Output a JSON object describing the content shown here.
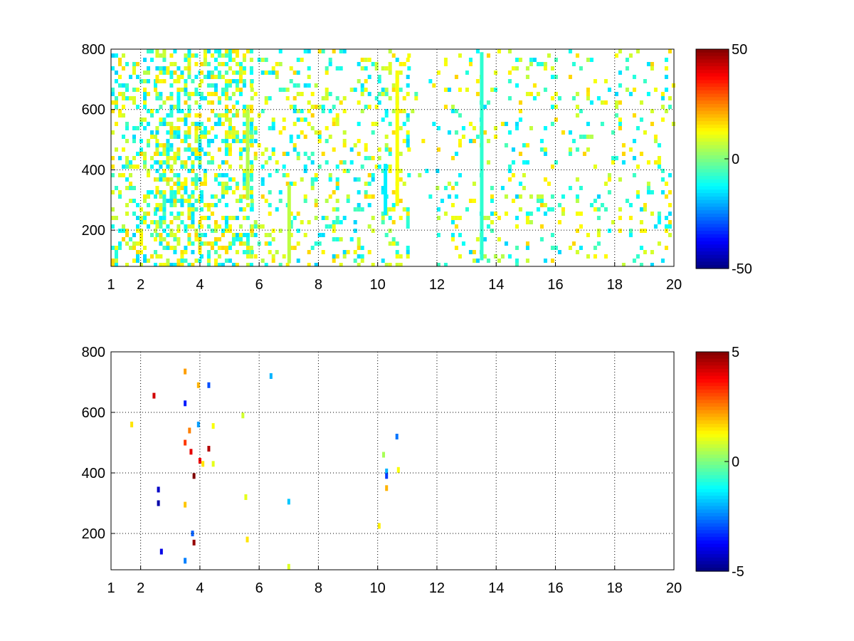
{
  "chart_data": [
    {
      "type": "heatmap",
      "panel": "top",
      "title": "",
      "xlabel": "",
      "ylabel": "",
      "xlim": [
        1,
        20
      ],
      "ylim": [
        80,
        800
      ],
      "x_ticks": [
        "1",
        "2",
        "4",
        "6",
        "8",
        "10",
        "12",
        "14",
        "16",
        "18",
        "20"
      ],
      "x_tick_values": [
        1,
        2,
        4,
        6,
        8,
        10,
        12,
        14,
        16,
        18,
        20
      ],
      "y_ticks": [
        "200",
        "400",
        "600",
        "800"
      ],
      "y_tick_values": [
        200,
        400,
        600,
        800
      ],
      "grid": true,
      "colormap": "jet",
      "colorbar": {
        "clim": [
          -50,
          50
        ],
        "ticks": [
          "50",
          "0",
          "-50"
        ],
        "tick_values": [
          50,
          0,
          -50
        ]
      },
      "density": [
        {
          "from": 1.0,
          "to": 2.5,
          "d": 0.32
        },
        {
          "from": 2.5,
          "to": 4.0,
          "d": 0.5
        },
        {
          "from": 4.0,
          "to": 5.7,
          "d": 0.42
        },
        {
          "from": 5.7,
          "to": 10.0,
          "d": 0.17
        },
        {
          "from": 10.0,
          "to": 11.0,
          "d": 0.22
        },
        {
          "from": 11.0,
          "to": 12.0,
          "d": 0.05
        },
        {
          "from": 12.0,
          "to": 20.0,
          "d": 0.12
        }
      ],
      "points": [],
      "streaks": [
        {
          "x": 10.65,
          "y0": 280,
          "y1": 720,
          "v": 12
        },
        {
          "x": 10.25,
          "y0": 250,
          "y1": 420,
          "v": -14
        },
        {
          "x": 13.5,
          "y0": 100,
          "y1": 790,
          "v": -8
        },
        {
          "x": 7.0,
          "y0": 90,
          "y1": 350,
          "v": 6
        },
        {
          "x": 5.6,
          "y0": 300,
          "y1": 600,
          "v": 5
        }
      ]
    },
    {
      "type": "heatmap",
      "panel": "bottom",
      "title": "",
      "xlabel": "",
      "ylabel": "",
      "xlim": [
        1,
        20
      ],
      "ylim": [
        80,
        800
      ],
      "x_ticks": [
        "1",
        "2",
        "4",
        "6",
        "8",
        "10",
        "12",
        "14",
        "16",
        "18",
        "20"
      ],
      "x_tick_values": [
        1,
        2,
        4,
        6,
        8,
        10,
        12,
        14,
        16,
        18,
        20
      ],
      "y_ticks": [
        "200",
        "400",
        "600",
        "800"
      ],
      "y_tick_values": [
        200,
        400,
        600,
        800
      ],
      "grid": true,
      "colormap": "jet",
      "colorbar": {
        "clim": [
          -5,
          5
        ],
        "ticks": [
          "5",
          "0",
          "-5"
        ],
        "tick_values": [
          5,
          0,
          -5
        ]
      },
      "density": [],
      "streaks": [],
      "points": [
        {
          "x": 1.7,
          "y": 560,
          "v": 1.5
        },
        {
          "x": 2.45,
          "y": 655,
          "v": 4.2
        },
        {
          "x": 2.6,
          "y": 345,
          "v": -4.3
        },
        {
          "x": 2.6,
          "y": 300,
          "v": -4.6
        },
        {
          "x": 2.7,
          "y": 140,
          "v": -4.0
        },
        {
          "x": 3.5,
          "y": 735,
          "v": 2.2
        },
        {
          "x": 3.5,
          "y": 630,
          "v": -3.5
        },
        {
          "x": 3.5,
          "y": 500,
          "v": 3.2
        },
        {
          "x": 3.5,
          "y": 295,
          "v": 1.8
        },
        {
          "x": 3.5,
          "y": 110,
          "v": -2.5
        },
        {
          "x": 3.65,
          "y": 540,
          "v": 2.5
        },
        {
          "x": 3.7,
          "y": 470,
          "v": 4.0
        },
        {
          "x": 3.8,
          "y": 390,
          "v": 5.0
        },
        {
          "x": 3.75,
          "y": 200,
          "v": -2.8
        },
        {
          "x": 3.8,
          "y": 170,
          "v": 4.8
        },
        {
          "x": 3.95,
          "y": 690,
          "v": 2.0
        },
        {
          "x": 3.95,
          "y": 560,
          "v": -2.2
        },
        {
          "x": 4.0,
          "y": 440,
          "v": 3.8
        },
        {
          "x": 4.1,
          "y": 430,
          "v": 1.5
        },
        {
          "x": 4.3,
          "y": 690,
          "v": -3.0
        },
        {
          "x": 4.3,
          "y": 480,
          "v": 4.5
        },
        {
          "x": 4.45,
          "y": 430,
          "v": 1.0
        },
        {
          "x": 4.45,
          "y": 555,
          "v": 1.2
        },
        {
          "x": 5.45,
          "y": 590,
          "v": 0.8
        },
        {
          "x": 5.55,
          "y": 320,
          "v": 1.0
        },
        {
          "x": 5.6,
          "y": 180,
          "v": 1.5
        },
        {
          "x": 6.4,
          "y": 720,
          "v": -2.0
        },
        {
          "x": 7.0,
          "y": 305,
          "v": -1.8
        },
        {
          "x": 7.0,
          "y": 90,
          "v": 0.9
        },
        {
          "x": 10.05,
          "y": 225,
          "v": 1.4
        },
        {
          "x": 10.2,
          "y": 460,
          "v": 0.4
        },
        {
          "x": 10.3,
          "y": 405,
          "v": -2.0
        },
        {
          "x": 10.3,
          "y": 390,
          "v": -3.2
        },
        {
          "x": 10.3,
          "y": 350,
          "v": 2.0
        },
        {
          "x": 10.65,
          "y": 520,
          "v": -2.6
        },
        {
          "x": 10.7,
          "y": 410,
          "v": 1.2
        }
      ]
    }
  ]
}
